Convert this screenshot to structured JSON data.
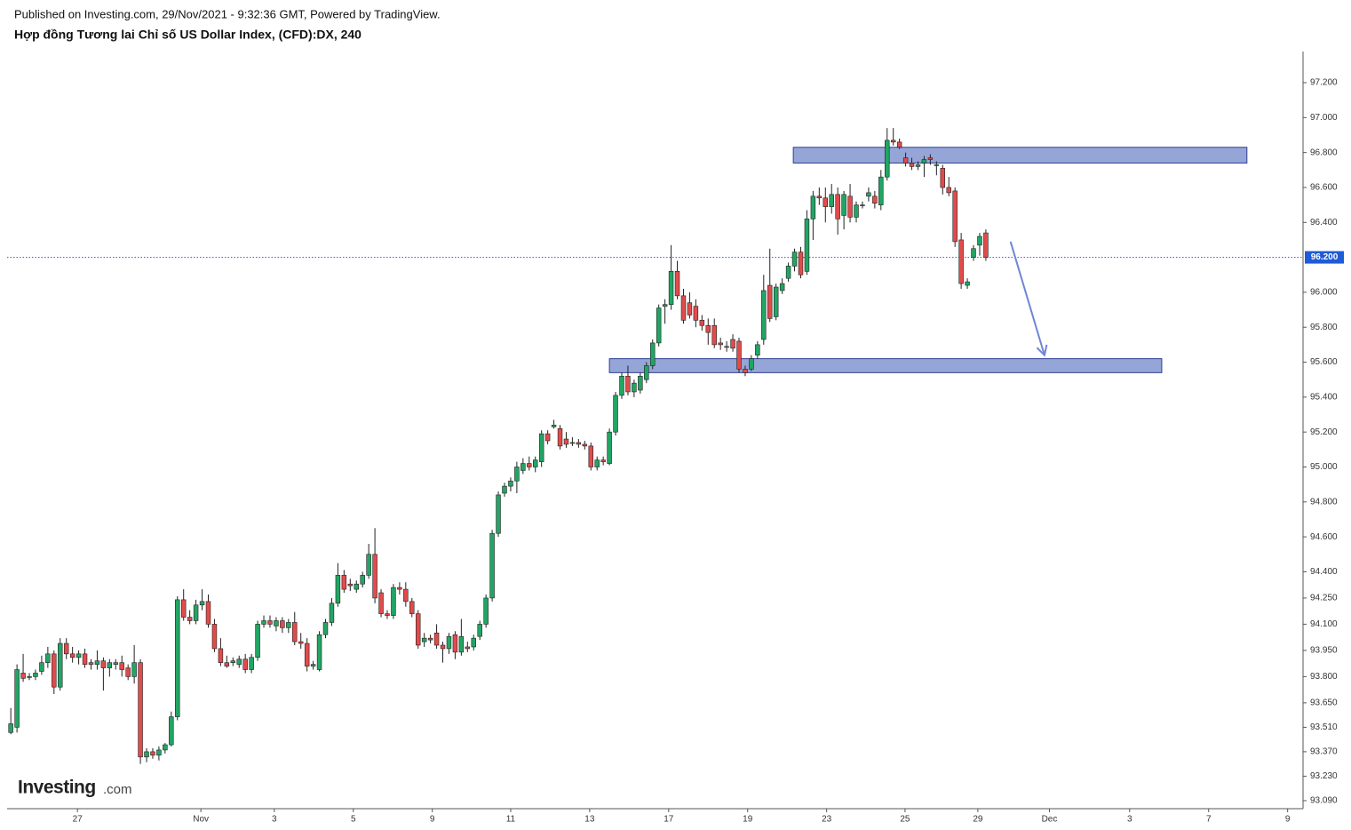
{
  "chart_data": {
    "type": "candlestick",
    "published": "Published on Investing.com, 29/Nov/2021 - 9:32:36 GMT, Powered by TradingView.",
    "title": "Hợp đồng Tương lai Chỉ số US Dollar Index, (CFD):DX, 240",
    "logo": "Investing",
    "logo_suffix": ".com",
    "up_color": "#22a564",
    "down_color": "#e24b4b",
    "outline_color": "#222222",
    "xlim": [
      -0.6,
      208.1
    ],
    "xticks": [
      {
        "value": 10.8,
        "label": "27"
      },
      {
        "value": 30.8,
        "label": "Nov"
      },
      {
        "value": 42.7,
        "label": "3"
      },
      {
        "value": 55.5,
        "label": "5"
      },
      {
        "value": 68.3,
        "label": "9"
      },
      {
        "value": 81.0,
        "label": "11"
      },
      {
        "value": 93.8,
        "label": "13"
      },
      {
        "value": 106.6,
        "label": "17"
      },
      {
        "value": 119.4,
        "label": "19"
      },
      {
        "value": 132.2,
        "label": "23"
      },
      {
        "value": 144.9,
        "label": "25"
      },
      {
        "value": 156.7,
        "label": "29"
      },
      {
        "value": 168.3,
        "label": "Dec"
      },
      {
        "value": 181.3,
        "label": "3"
      },
      {
        "value": 194.1,
        "label": "7"
      },
      {
        "value": 206.9,
        "label": "9"
      }
    ],
    "ylim": [
      93.044,
      97.368
    ],
    "yticks": [
      {
        "value": 93.09,
        "label": "93.090"
      },
      {
        "value": 93.23,
        "label": "93.230"
      },
      {
        "value": 93.37,
        "label": "93.370"
      },
      {
        "value": 93.51,
        "label": "93.510"
      },
      {
        "value": 93.65,
        "label": "93.650"
      },
      {
        "value": 93.8,
        "label": "93.800"
      },
      {
        "value": 93.95,
        "label": "93.950"
      },
      {
        "value": 94.1,
        "label": "94.100"
      },
      {
        "value": 94.25,
        "label": "94.250"
      },
      {
        "value": 94.4,
        "label": "94.400"
      },
      {
        "value": 94.6,
        "label": "94.600"
      },
      {
        "value": 94.8,
        "label": "94.800"
      },
      {
        "value": 95,
        "label": "95.000"
      },
      {
        "value": 95.2,
        "label": "95.200"
      },
      {
        "value": 95.4,
        "label": "95.400"
      },
      {
        "value": 95.6,
        "label": "95.600"
      },
      {
        "value": 95.8,
        "label": "95.800"
      },
      {
        "value": 96,
        "label": "96.000"
      },
      {
        "value": 96.4,
        "label": "96.400"
      },
      {
        "value": 96.6,
        "label": "96.600"
      },
      {
        "value": 96.8,
        "label": "96.800"
      },
      {
        "value": 97,
        "label": "97.000"
      },
      {
        "value": 97.2,
        "label": "97.200"
      }
    ],
    "last_price": {
      "value": 96.2,
      "label": "96.200",
      "color": "#1e5bd6"
    },
    "zones": [
      {
        "x": [
          126.8,
          200.3
        ],
        "y": [
          96.74,
          96.83
        ],
        "color": "#8b9bd4"
      },
      {
        "x": [
          97.0,
          186.5
        ],
        "y": [
          95.54,
          95.62
        ],
        "color": "#8b9bd4"
      }
    ],
    "arrow": {
      "x": [
        162.0,
        167.5
      ],
      "y": [
        96.29,
        95.64
      ],
      "color": "#6f86d6"
    },
    "ohlc": [
      [
        93.48,
        93.62,
        93.47,
        93.53
      ],
      [
        93.51,
        93.87,
        93.48,
        93.84
      ],
      [
        93.82,
        93.93,
        93.77,
        93.79
      ],
      [
        93.8,
        93.82,
        93.78,
        93.8
      ],
      [
        93.8,
        93.84,
        93.78,
        93.82
      ],
      [
        93.83,
        93.92,
        93.81,
        93.88
      ],
      [
        93.88,
        93.97,
        93.85,
        93.93
      ],
      [
        93.93,
        93.95,
        93.7,
        93.74
      ],
      [
        93.74,
        94.02,
        93.72,
        93.99
      ],
      [
        93.99,
        94.02,
        93.9,
        93.93
      ],
      [
        93.93,
        93.97,
        93.88,
        93.91
      ],
      [
        93.91,
        93.95,
        93.87,
        93.93
      ],
      [
        93.93,
        93.96,
        93.85,
        93.87
      ],
      [
        93.88,
        93.9,
        93.84,
        93.87
      ],
      [
        93.87,
        93.95,
        93.84,
        93.89
      ],
      [
        93.89,
        93.91,
        93.72,
        93.85
      ],
      [
        93.85,
        93.9,
        93.8,
        93.88
      ],
      [
        93.87,
        93.9,
        93.84,
        93.88
      ],
      [
        93.88,
        93.92,
        93.8,
        93.84
      ],
      [
        93.85,
        93.87,
        93.78,
        93.8
      ],
      [
        93.8,
        93.98,
        93.76,
        93.88
      ],
      [
        93.88,
        93.9,
        93.3,
        93.34
      ],
      [
        93.34,
        93.39,
        93.31,
        93.37
      ],
      [
        93.37,
        93.39,
        93.33,
        93.35
      ],
      [
        93.35,
        93.4,
        93.32,
        93.38
      ],
      [
        93.38,
        93.42,
        93.36,
        93.41
      ],
      [
        93.41,
        93.6,
        93.4,
        93.57
      ],
      [
        93.57,
        94.26,
        93.55,
        94.24
      ],
      [
        94.24,
        94.3,
        94.12,
        94.14
      ],
      [
        94.14,
        94.18,
        94.1,
        94.12
      ],
      [
        94.12,
        94.24,
        94.1,
        94.21
      ],
      [
        94.21,
        94.3,
        94.18,
        94.23
      ],
      [
        94.23,
        94.27,
        94.08,
        94.1
      ],
      [
        94.1,
        94.13,
        93.94,
        93.96
      ],
      [
        93.96,
        94.02,
        93.86,
        93.88
      ],
      [
        93.88,
        93.92,
        93.85,
        93.86
      ],
      [
        93.88,
        93.91,
        93.86,
        93.89
      ],
      [
        93.87,
        93.92,
        93.85,
        93.9
      ],
      [
        93.9,
        93.93,
        93.82,
        93.84
      ],
      [
        93.84,
        93.93,
        93.82,
        93.91
      ],
      [
        93.91,
        94.12,
        93.89,
        94.1
      ],
      [
        94.1,
        94.15,
        94.08,
        94.12
      ],
      [
        94.12,
        94.15,
        94.08,
        94.1
      ],
      [
        94.09,
        94.14,
        94.06,
        94.12
      ],
      [
        94.12,
        94.14,
        94.05,
        94.08
      ],
      [
        94.08,
        94.13,
        94.05,
        94.11
      ],
      [
        94.11,
        94.17,
        93.98,
        94.0
      ],
      [
        94.0,
        94.05,
        93.96,
        93.99
      ],
      [
        93.99,
        94.02,
        93.83,
        93.86
      ],
      [
        93.86,
        93.89,
        93.84,
        93.87
      ],
      [
        93.84,
        94.06,
        93.83,
        94.04
      ],
      [
        94.04,
        94.13,
        94.02,
        94.11
      ],
      [
        94.11,
        94.25,
        94.09,
        94.22
      ],
      [
        94.22,
        94.45,
        94.2,
        94.38
      ],
      [
        94.38,
        94.41,
        94.28,
        94.3
      ],
      [
        94.33,
        94.36,
        94.29,
        94.32
      ],
      [
        94.3,
        94.35,
        94.28,
        94.33
      ],
      [
        94.33,
        94.4,
        94.31,
        94.38
      ],
      [
        94.38,
        94.56,
        94.36,
        94.5
      ],
      [
        94.5,
        94.65,
        94.22,
        94.25
      ],
      [
        94.28,
        94.3,
        94.14,
        94.16
      ],
      [
        94.16,
        94.18,
        94.13,
        94.15
      ],
      [
        94.15,
        94.33,
        94.13,
        94.31
      ],
      [
        94.31,
        94.34,
        94.27,
        94.3
      ],
      [
        94.3,
        94.34,
        94.2,
        94.23
      ],
      [
        94.23,
        94.25,
        94.14,
        94.16
      ],
      [
        94.16,
        94.18,
        93.96,
        93.98
      ],
      [
        94.0,
        94.05,
        93.97,
        94.02
      ],
      [
        94.02,
        94.04,
        93.99,
        94.01
      ],
      [
        94.05,
        94.1,
        93.96,
        93.98
      ],
      [
        93.98,
        94.0,
        93.88,
        93.96
      ],
      [
        93.96,
        94.05,
        93.93,
        94.03
      ],
      [
        94.04,
        94.06,
        93.9,
        93.94
      ],
      [
        93.94,
        94.13,
        93.92,
        94.03
      ],
      [
        93.97,
        94.0,
        93.94,
        93.96
      ],
      [
        93.97,
        94.04,
        93.95,
        94.02
      ],
      [
        94.03,
        94.12,
        94.01,
        94.1
      ],
      [
        94.1,
        94.27,
        94.08,
        94.25
      ],
      [
        94.25,
        94.64,
        94.23,
        94.62
      ],
      [
        94.62,
        94.86,
        94.6,
        94.84
      ],
      [
        94.85,
        94.91,
        94.83,
        94.89
      ],
      [
        94.89,
        94.94,
        94.86,
        94.92
      ],
      [
        94.92,
        95.03,
        94.85,
        95.0
      ],
      [
        94.98,
        95.05,
        94.96,
        95.02
      ],
      [
        95.02,
        95.06,
        94.98,
        95.0
      ],
      [
        95.0,
        95.06,
        94.97,
        95.04
      ],
      [
        95.03,
        95.21,
        95.0,
        95.19
      ],
      [
        95.19,
        95.21,
        95.13,
        95.15
      ],
      [
        95.23,
        95.27,
        95.22,
        95.24
      ],
      [
        95.22,
        95.24,
        95.1,
        95.12
      ],
      [
        95.16,
        95.2,
        95.11,
        95.13
      ],
      [
        95.14,
        95.17,
        95.12,
        95.14
      ],
      [
        95.14,
        95.16,
        95.11,
        95.13
      ],
      [
        95.13,
        95.15,
        95.1,
        95.12
      ],
      [
        95.12,
        95.14,
        94.98,
        95.0
      ],
      [
        95.0,
        95.06,
        94.98,
        95.04
      ],
      [
        95.04,
        95.06,
        95.01,
        95.03
      ],
      [
        95.02,
        95.22,
        95.01,
        95.2
      ],
      [
        95.2,
        95.43,
        95.18,
        95.41
      ],
      [
        95.41,
        95.54,
        95.39,
        95.52
      ],
      [
        95.52,
        95.58,
        95.41,
        95.43
      ],
      [
        95.43,
        95.5,
        95.4,
        95.48
      ],
      [
        95.44,
        95.54,
        95.42,
        95.52
      ],
      [
        95.5,
        95.6,
        95.48,
        95.58
      ],
      [
        95.58,
        95.73,
        95.56,
        95.71
      ],
      [
        95.71,
        95.93,
        95.69,
        95.91
      ],
      [
        95.92,
        95.96,
        95.82,
        95.93
      ],
      [
        95.93,
        96.27,
        95.9,
        96.12
      ],
      [
        96.12,
        96.18,
        95.96,
        95.98
      ],
      [
        95.98,
        96.02,
        95.82,
        95.84
      ],
      [
        95.94,
        96.0,
        95.85,
        95.87
      ],
      [
        95.92,
        95.96,
        95.8,
        95.84
      ],
      [
        95.84,
        95.87,
        95.78,
        95.81
      ],
      [
        95.81,
        95.85,
        95.7,
        95.77
      ],
      [
        95.81,
        95.85,
        95.68,
        95.7
      ],
      [
        95.71,
        95.74,
        95.67,
        95.7
      ],
      [
        95.69,
        95.72,
        95.66,
        95.69
      ],
      [
        95.73,
        95.76,
        95.66,
        95.68
      ],
      [
        95.72,
        95.74,
        95.54,
        95.56
      ],
      [
        95.56,
        95.58,
        95.52,
        95.54
      ],
      [
        95.56,
        95.64,
        95.55,
        95.62
      ],
      [
        95.64,
        95.72,
        95.62,
        95.7
      ],
      [
        95.73,
        96.1,
        95.7,
        96.01
      ],
      [
        96.04,
        96.25,
        95.83,
        95.85
      ],
      [
        95.86,
        96.05,
        95.84,
        96.03
      ],
      [
        96.01,
        96.08,
        95.99,
        96.05
      ],
      [
        96.08,
        96.17,
        96.06,
        96.15
      ],
      [
        96.15,
        96.25,
        96.12,
        96.23
      ],
      [
        96.23,
        96.26,
        96.08,
        96.1
      ],
      [
        96.12,
        96.47,
        96.1,
        96.42
      ],
      [
        96.42,
        96.58,
        96.3,
        96.55
      ],
      [
        96.55,
        96.6,
        96.5,
        96.54
      ],
      [
        96.54,
        96.6,
        96.4,
        96.49
      ],
      [
        96.49,
        96.62,
        96.45,
        96.56
      ],
      [
        96.56,
        96.6,
        96.33,
        96.42
      ],
      [
        96.44,
        96.58,
        96.36,
        96.56
      ],
      [
        96.55,
        96.62,
        96.4,
        96.43
      ],
      [
        96.43,
        96.52,
        96.4,
        96.5
      ],
      [
        96.5,
        96.52,
        96.48,
        96.5
      ],
      [
        96.55,
        96.6,
        96.52,
        96.57
      ],
      [
        96.55,
        96.58,
        96.48,
        96.51
      ],
      [
        96.5,
        96.7,
        96.47,
        96.66
      ],
      [
        96.66,
        96.94,
        96.64,
        96.87
      ],
      [
        96.87,
        96.94,
        96.84,
        96.86
      ],
      [
        96.86,
        96.88,
        96.82,
        96.83
      ],
      [
        96.77,
        96.8,
        96.72,
        96.74
      ],
      [
        96.74,
        96.77,
        96.7,
        96.72
      ],
      [
        96.72,
        96.75,
        96.7,
        96.73
      ],
      [
        96.74,
        96.78,
        96.66,
        96.76
      ],
      [
        96.77,
        96.79,
        96.73,
        96.76
      ],
      [
        96.73,
        96.75,
        96.67,
        96.73
      ],
      [
        96.71,
        96.73,
        96.56,
        96.6
      ],
      [
        96.6,
        96.66,
        96.55,
        96.57
      ],
      [
        96.58,
        96.6,
        96.26,
        96.29
      ],
      [
        96.3,
        96.34,
        96.02,
        96.05
      ],
      [
        96.04,
        96.08,
        96.02,
        96.06
      ],
      [
        96.2,
        96.27,
        96.18,
        96.25
      ],
      [
        96.27,
        96.34,
        96.21,
        96.32
      ],
      [
        96.34,
        96.36,
        96.18,
        96.2
      ]
    ]
  }
}
